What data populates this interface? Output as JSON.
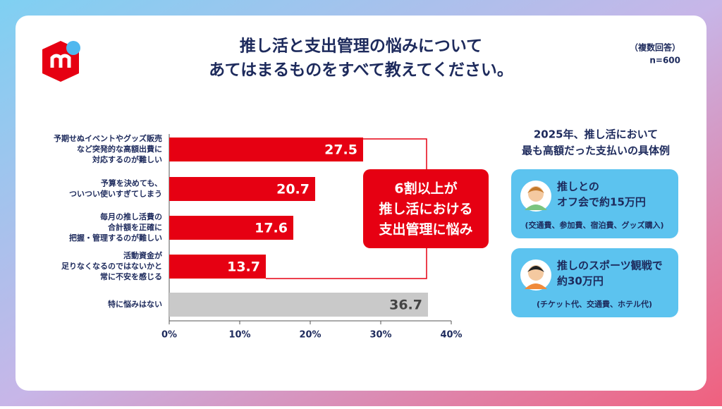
{
  "chart_data": {
    "type": "barh",
    "title": [
      "推し活と支出管理の悩みについて",
      "あてはまるものをすべて教えてください。"
    ],
    "note": [
      "（複数回答）",
      "n=600"
    ],
    "categories": [
      [
        "予期せぬイベントやグッズ販売",
        "など突発的な高額出費に",
        "対応するのが難しい"
      ],
      [
        "予算を決めても、",
        "ついつい使いすぎてしまう"
      ],
      [
        "毎月の推し活費の",
        "合計額を正確に",
        "把握・管理するのが難しい"
      ],
      [
        "活動資金が",
        "足りなくなるのではないかと",
        "常に不安を感じる"
      ],
      [
        "特に悩みはない"
      ]
    ],
    "values": [
      27.5,
      20.7,
      17.6,
      13.7,
      36.7
    ],
    "colors": [
      "#e60012",
      "#e60012",
      "#e60012",
      "#e60012",
      "#c9c9c9"
    ],
    "xlim": [
      0,
      40
    ],
    "xticks": [
      {
        "value": 0,
        "label": "0%"
      },
      {
        "value": 10,
        "label": "10%"
      },
      {
        "value": 20,
        "label": "20%"
      },
      {
        "value": 30,
        "label": "30%"
      },
      {
        "value": 40,
        "label": "40%"
      }
    ],
    "annotation": [
      "6割以上が",
      "推し活における",
      "支出管理に悩み"
    ]
  },
  "sidebar": {
    "title": [
      "2025年、推し活において",
      "最も高額だった支払いの具体例"
    ],
    "cards": [
      {
        "lines": [
          "推しとの",
          "オフ会で約15万円"
        ],
        "detail": "(交通費、参加費、宿泊費、グッズ購入)"
      },
      {
        "lines": [
          "推しのスポーツ観戦で",
          "約30万円"
        ],
        "detail": "(チケット代、交通費、ホテル代)"
      }
    ]
  }
}
